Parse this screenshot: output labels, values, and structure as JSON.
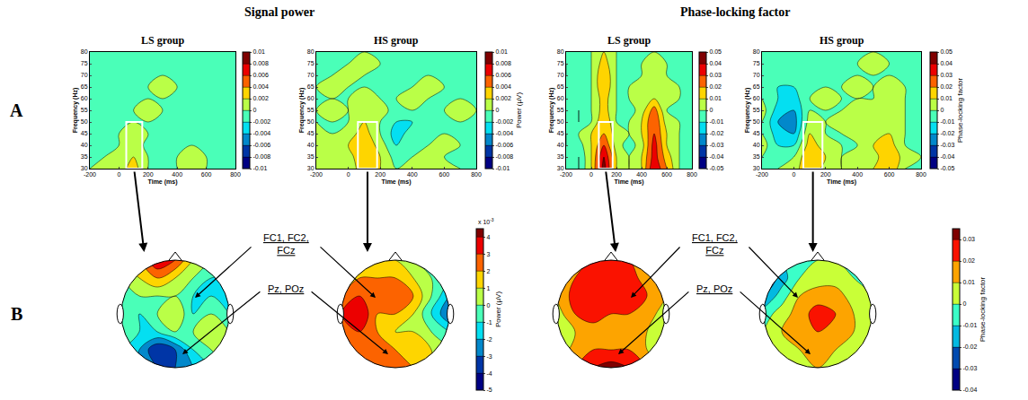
{
  "figure": {
    "groups": [
      "Signal power",
      "Phase-locking factor"
    ],
    "row_labels": [
      "A",
      "B"
    ],
    "electrode_labels": [
      "FC1, FC2, FCz",
      "Pz, POz"
    ]
  },
  "chart_data": [
    {
      "type": "contour",
      "title": "LS group",
      "x_label": "Time (ms)",
      "y_label": "Frequency (Hz)",
      "x": [
        -200,
        -100,
        0,
        100,
        200,
        300,
        400,
        500,
        600,
        700,
        800
      ],
      "y": [
        30,
        35,
        40,
        45,
        50,
        55,
        60,
        65,
        70,
        75,
        80
      ],
      "z": [
        [
          0,
          0.001,
          0.001,
          0.003,
          0,
          -0.001,
          0,
          0.001,
          0,
          0,
          0
        ],
        [
          0,
          0,
          0.001,
          0.002,
          0,
          0,
          0,
          0.001,
          0,
          0,
          0
        ],
        [
          0,
          0,
          0,
          0.002,
          -0.001,
          -0.002,
          0,
          0,
          -0.001,
          0,
          0
        ],
        [
          0,
          -0.001,
          0,
          0.001,
          0,
          -0.001,
          0,
          0,
          0,
          0,
          0
        ],
        [
          0,
          0,
          -0.001,
          0,
          0,
          0,
          -0.001,
          0,
          0,
          -0.001,
          0
        ],
        [
          0,
          0,
          0,
          0,
          0.001,
          0,
          0,
          0,
          0,
          0,
          0
        ],
        [
          0,
          -0.001,
          0,
          0,
          0,
          0,
          0,
          -0.001,
          0,
          0,
          0
        ],
        [
          0,
          0,
          0,
          0,
          0,
          0.001,
          0,
          0,
          0,
          0,
          0
        ],
        [
          0,
          0,
          0,
          0,
          0,
          0,
          0,
          0,
          0,
          0,
          0
        ],
        [
          0,
          0,
          0,
          -0.001,
          0,
          0,
          0,
          0,
          0,
          0,
          0
        ],
        [
          0,
          0,
          0,
          0,
          0,
          0,
          0,
          0,
          0,
          0,
          0
        ]
      ],
      "xlim": [
        -200,
        800
      ],
      "xticks": [
        -200,
        0,
        200,
        400,
        600,
        800
      ],
      "ylim": [
        30,
        80
      ],
      "yticks": [
        30,
        35,
        40,
        45,
        50,
        55,
        60,
        65,
        70,
        75,
        80
      ],
      "window": {
        "x": [
          50,
          160
        ],
        "y": [
          30,
          50
        ]
      },
      "colorbar": {
        "range": [
          -0.01,
          0.01
        ],
        "ticks": [
          -0.01,
          -0.008,
          -0.006,
          -0.004,
          -0.002,
          0,
          0.002,
          0.004,
          0.006,
          0.008,
          0.01
        ]
      }
    },
    {
      "type": "contour",
      "title": "HS group",
      "x_label": "Time (ms)",
      "y_label": "Frequency (Hz)",
      "x": [
        -200,
        -100,
        0,
        100,
        200,
        300,
        400,
        500,
        600,
        700,
        800
      ],
      "y": [
        30,
        35,
        40,
        45,
        50,
        55,
        60,
        65,
        70,
        75,
        80
      ],
      "z": [
        [
          0.002,
          0.002,
          0.001,
          0.003,
          0.002,
          0,
          0.001,
          0,
          0.001,
          0,
          0
        ],
        [
          0.001,
          0.002,
          0.001,
          0.004,
          0.002,
          -0.001,
          0,
          0.001,
          0,
          0,
          0
        ],
        [
          0.001,
          0.001,
          0.002,
          0.004,
          0.001,
          -0.002,
          0,
          0,
          0.001,
          0,
          0
        ],
        [
          0.001,
          0,
          0.001,
          0.003,
          0,
          -0.003,
          -0.001,
          0,
          0,
          0,
          0
        ],
        [
          0,
          0,
          0,
          0.002,
          0,
          -0.002,
          -0.002,
          0,
          0,
          0,
          0
        ],
        [
          0,
          0.001,
          0,
          0.001,
          0.001,
          -0.001,
          0,
          0,
          0,
          0.001,
          0
        ],
        [
          0,
          0,
          0,
          0.001,
          0,
          0,
          0.001,
          0,
          0,
          0,
          0
        ],
        [
          0,
          0.001,
          0,
          0,
          0,
          0,
          0,
          0.001,
          0,
          0,
          0
        ],
        [
          0,
          0,
          0.001,
          0,
          0,
          0,
          0,
          0,
          0,
          0,
          0
        ],
        [
          0,
          0,
          0,
          0.001,
          0,
          0,
          0,
          0,
          0,
          0,
          0
        ],
        [
          0,
          0,
          0,
          0,
          0,
          0,
          0,
          0,
          0,
          0,
          0
        ]
      ],
      "xlim": [
        -200,
        800
      ],
      "xticks": [
        -200,
        0,
        200,
        400,
        600,
        800
      ],
      "ylim": [
        30,
        80
      ],
      "yticks": [
        30,
        35,
        40,
        45,
        50,
        55,
        60,
        65,
        70,
        75,
        80
      ],
      "window": {
        "x": [
          60,
          180
        ],
        "y": [
          30,
          50
        ]
      },
      "colorbar": {
        "range": [
          -0.01,
          0.01
        ],
        "ticks": [
          -0.01,
          -0.008,
          -0.006,
          -0.004,
          -0.002,
          0,
          0.002,
          0.004,
          0.006,
          0.008,
          0.01
        ],
        "title": "Power (µV)"
      }
    },
    {
      "type": "contour",
      "title": "LS group",
      "x_label": "Time (ms)",
      "y_label": "Frequency (Hz)",
      "x": [
        -200,
        -100,
        0,
        100,
        200,
        300,
        400,
        500,
        600,
        700,
        800
      ],
      "y": [
        30,
        35,
        40,
        45,
        50,
        55,
        60,
        65,
        70,
        75,
        80
      ],
      "z": [
        [
          0,
          -0.01,
          0.01,
          0.045,
          0.01,
          0,
          0.01,
          0.04,
          0.02,
          0,
          0
        ],
        [
          0,
          -0.01,
          0.01,
          0.04,
          0.01,
          0,
          0.01,
          0.035,
          0.015,
          0,
          0
        ],
        [
          -0.01,
          -0.005,
          0.01,
          0.03,
          0.005,
          -0.005,
          0.005,
          0.035,
          0.01,
          0,
          0
        ],
        [
          -0.01,
          0,
          0.01,
          0.02,
          0.005,
          0,
          0.01,
          0.03,
          0.01,
          0,
          0
        ],
        [
          0,
          -0.01,
          0,
          0.02,
          0,
          0,
          0.01,
          0.03,
          0.005,
          0,
          0
        ],
        [
          0,
          -0.01,
          0,
          0.015,
          0,
          -0.005,
          0.005,
          0.025,
          0,
          0,
          0
        ],
        [
          0,
          0,
          0,
          0.015,
          0,
          0,
          0.01,
          0.01,
          0.005,
          0,
          0
        ],
        [
          -0.005,
          0,
          0,
          0.02,
          0,
          0,
          0.01,
          0.005,
          0.01,
          0,
          0
        ],
        [
          -0.01,
          0,
          0,
          0.02,
          0,
          0,
          0,
          0.005,
          0,
          0,
          0
        ],
        [
          -0.01,
          0,
          0,
          0.015,
          0,
          0,
          0,
          0.005,
          0,
          0,
          0
        ],
        [
          -0.005,
          0,
          0,
          0.01,
          0,
          0,
          0,
          0,
          0,
          0,
          0
        ]
      ],
      "xlim": [
        -200,
        800
      ],
      "xticks": [
        -200,
        0,
        200,
        400,
        600,
        800
      ],
      "ylim": [
        30,
        80
      ],
      "yticks": [
        30,
        35,
        40,
        45,
        50,
        55,
        60,
        65,
        70,
        75,
        80
      ],
      "window": {
        "x": [
          60,
          170
        ],
        "y": [
          30,
          50
        ]
      },
      "colorbar": {
        "range": [
          -0.05,
          0.05
        ],
        "ticks": [
          -0.05,
          -0.04,
          -0.03,
          -0.02,
          -0.01,
          0,
          0.01,
          0.02,
          0.03,
          0.04,
          0.05
        ]
      }
    },
    {
      "type": "contour",
      "title": "HS group",
      "x_label": "Time (ms)",
      "y_label": "Frequency (Hz)",
      "x": [
        -200,
        -100,
        0,
        100,
        200,
        300,
        400,
        500,
        600,
        700,
        800
      ],
      "y": [
        30,
        35,
        40,
        45,
        50,
        55,
        60,
        65,
        70,
        75,
        80
      ],
      "z": [
        [
          0,
          0,
          0.005,
          0.02,
          0.005,
          0,
          0.005,
          0.01,
          0.02,
          0,
          0
        ],
        [
          0,
          0,
          0,
          0.02,
          0.01,
          0,
          0.005,
          0.005,
          0.02,
          0.005,
          0
        ],
        [
          0.005,
          -0.01,
          -0.01,
          0.015,
          0.005,
          0,
          0,
          0.01,
          0.015,
          0,
          0
        ],
        [
          0,
          -0.015,
          -0.02,
          0.01,
          0,
          0,
          0.005,
          0.005,
          0.01,
          0,
          0
        ],
        [
          0,
          -0.02,
          -0.025,
          0.005,
          0,
          0.005,
          0,
          0.01,
          0.005,
          0,
          0
        ],
        [
          0.005,
          -0.015,
          -0.02,
          0,
          0,
          0,
          0.005,
          0.005,
          0.01,
          0,
          0
        ],
        [
          0,
          -0.01,
          -0.015,
          0,
          0.005,
          0,
          0,
          0,
          0.01,
          0,
          0
        ],
        [
          0,
          -0.01,
          -0.01,
          0,
          0,
          0,
          0.005,
          0,
          0.005,
          0,
          0
        ],
        [
          0,
          -0.005,
          -0.005,
          0,
          0,
          0,
          0,
          0,
          0,
          0,
          0
        ],
        [
          0,
          0,
          0,
          0,
          0,
          0,
          0,
          0.005,
          0,
          0,
          0
        ],
        [
          0,
          0,
          0,
          0,
          0,
          0,
          0,
          0,
          0,
          0,
          0
        ]
      ],
      "xlim": [
        -200,
        800
      ],
      "xticks": [
        -200,
        0,
        200,
        400,
        600,
        800
      ],
      "ylim": [
        30,
        80
      ],
      "yticks": [
        30,
        35,
        40,
        45,
        50,
        55,
        60,
        65,
        70,
        75,
        80
      ],
      "window": {
        "x": [
          60,
          180
        ],
        "y": [
          30,
          50
        ]
      },
      "colorbar": {
        "range": [
          -0.05,
          0.05
        ],
        "ticks": [
          -0.05,
          -0.04,
          -0.03,
          -0.02,
          -0.01,
          0,
          0.01,
          0.02,
          0.03,
          0.04,
          0.05
        ],
        "title": "Phase-locking factor"
      }
    },
    {
      "type": "topomap",
      "x": [
        -1,
        -0.667,
        -0.333,
        0,
        0.333,
        0.667,
        1
      ],
      "y": [
        -1,
        -0.667,
        -0.333,
        0,
        0.333,
        0.667,
        1
      ],
      "z": [
        [
          -1,
          -2,
          -3,
          -3,
          -2,
          -1,
          0
        ],
        [
          -1,
          -2,
          -4,
          -3,
          -1,
          0,
          1
        ],
        [
          0,
          -1,
          -1,
          0,
          0,
          1,
          0
        ],
        [
          0,
          -1,
          0,
          1,
          -1,
          0,
          -1
        ],
        [
          -1,
          0,
          0,
          0,
          -1,
          -1,
          -1
        ],
        [
          0,
          1,
          2,
          1,
          0,
          -1,
          -1
        ],
        [
          1,
          2,
          4,
          3,
          1,
          0,
          0
        ]
      ],
      "zlim": [
        -5,
        4.5
      ]
    },
    {
      "type": "topomap",
      "x": [
        -1,
        -0.667,
        -0.333,
        0,
        0.333,
        0.667,
        1
      ],
      "y": [
        -1,
        -0.667,
        -0.333,
        0,
        0.333,
        0.667,
        1
      ],
      "z": [
        [
          1,
          2,
          3,
          3,
          2,
          1,
          0
        ],
        [
          2,
          3,
          3,
          2,
          2,
          1,
          0
        ],
        [
          3,
          3,
          2,
          1,
          1,
          0,
          -1
        ],
        [
          3,
          4,
          2,
          2,
          1,
          -1,
          -3
        ],
        [
          2,
          3,
          3,
          3,
          2,
          0,
          -2
        ],
        [
          1,
          2,
          2,
          2,
          1,
          0,
          -1
        ],
        [
          0,
          1,
          1,
          1,
          0,
          0,
          0
        ]
      ],
      "zlim": [
        -5,
        4.5
      ],
      "colorbar": {
        "ticks": [
          -5,
          -4,
          -3,
          -2,
          -1,
          0,
          1,
          2,
          3,
          4
        ],
        "title": "Power (µV)",
        "multiplier": {
          "base": "x 10",
          "exponent": "-3"
        }
      }
    },
    {
      "type": "topomap",
      "x": [
        -1,
        -0.667,
        -0.333,
        0,
        0.333,
        0.667,
        1
      ],
      "y": [
        -1,
        -0.667,
        -0.333,
        0,
        0.333,
        0.667,
        1
      ],
      "z": [
        [
          0.01,
          0.02,
          0.03,
          0.035,
          0.03,
          0.02,
          0.01
        ],
        [
          0,
          0.015,
          0.02,
          0.02,
          0.02,
          0.01,
          0
        ],
        [
          0,
          0.01,
          0.015,
          0.02,
          0.015,
          0.01,
          0.005
        ],
        [
          0.005,
          0.02,
          0.025,
          0.02,
          0.02,
          0.015,
          0.005
        ],
        [
          0.01,
          0.025,
          0.03,
          0.03,
          0.025,
          0.02,
          0.01
        ],
        [
          0.005,
          0.02,
          0.03,
          0.03,
          0.025,
          0.015,
          0.005
        ],
        [
          0,
          0.01,
          0.02,
          0.02,
          0.02,
          0.01,
          0
        ]
      ],
      "zlim": [
        -0.04,
        0.035
      ]
    },
    {
      "type": "topomap",
      "x": [
        -1,
        -0.667,
        -0.333,
        0,
        0.333,
        0.667,
        1
      ],
      "y": [
        -1,
        -0.667,
        -0.333,
        0,
        0.333,
        0.667,
        1
      ],
      "z": [
        [
          0,
          0.005,
          0.01,
          0.01,
          0.01,
          0.005,
          0
        ],
        [
          0,
          0.005,
          0.01,
          0.015,
          0.01,
          0.005,
          0
        ],
        [
          0,
          0.01,
          0.015,
          0.02,
          0.02,
          0.01,
          0.005
        ],
        [
          -0.005,
          0.005,
          0.015,
          0.025,
          0.02,
          0.01,
          0
        ],
        [
          -0.02,
          -0.005,
          0.01,
          0.015,
          0.015,
          0.005,
          0
        ],
        [
          -0.03,
          -0.015,
          0,
          0.005,
          0.005,
          0,
          0
        ],
        [
          -0.02,
          -0.01,
          0,
          0,
          0,
          0,
          0
        ]
      ],
      "zlim": [
        -0.04,
        0.035
      ],
      "colorbar": {
        "ticks": [
          -0.04,
          -0.03,
          -0.02,
          -0.01,
          0,
          0.01,
          0.02,
          0.03
        ],
        "title": "Phase-locking factor"
      }
    }
  ]
}
